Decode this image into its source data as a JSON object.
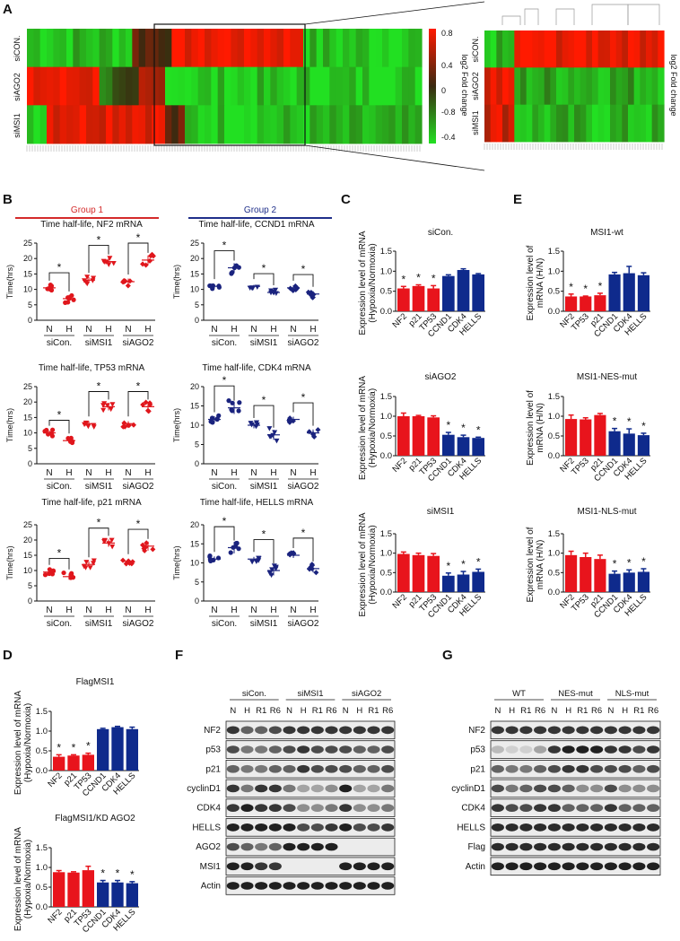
{
  "panel_labels": [
    "A",
    "B",
    "C",
    "D",
    "E",
    "F",
    "G"
  ],
  "chart_data": {
    "heatmap_A": {
      "type": "heatmap",
      "rows": [
        "siCON.",
        "siAGO2",
        "siMSI1"
      ],
      "legend_title": "log2 Fold change",
      "legend_ticks": [
        "0.8",
        "0.4",
        "0",
        "-0.8",
        "-0.4"
      ],
      "colors": {
        "high": "#ff1a00",
        "mid": "#3a2a10",
        "low": "#22e022"
      },
      "main_segments": [
        [
          [
            -0.7,
            16
          ],
          [
            0.2,
            6
          ],
          [
            0.85,
            20
          ],
          [
            -0.75,
            18
          ]
        ],
        [
          [
            0.8,
            11
          ],
          [
            -0.3,
            6
          ],
          [
            0.4,
            4
          ],
          [
            -0.8,
            39
          ]
        ],
        [
          [
            -0.7,
            3
          ],
          [
            0.85,
            18
          ],
          [
            0.1,
            3
          ],
          [
            -0.75,
            36
          ]
        ]
      ],
      "zoom_segments": [
        [
          [
            -0.75,
            5
          ],
          [
            0.85,
            25
          ]
        ],
        [
          [
            0.75,
            5
          ],
          [
            -0.6,
            25
          ]
        ],
        [
          [
            0.7,
            5
          ],
          [
            -0.7,
            25
          ]
        ]
      ]
    },
    "group_titles": [
      "Group 1",
      "Group 2"
    ],
    "group_colors": [
      "#d42a2a",
      "#1f2f8a"
    ],
    "scatter_B": [
      {
        "title": "Time half-life, NF2 mRNA",
        "ylabel": "Time(hrs)",
        "ymax": 25,
        "ticks": [
          0,
          5,
          10,
          15,
          20,
          25
        ],
        "color": "#e0161c",
        "marker": "circle/square/triangle",
        "means": [
          10.5,
          7,
          13,
          19,
          12.5,
          19.5
        ],
        "sd": [
          0.8,
          1.2,
          1.0,
          1.4,
          1.0,
          1.5
        ]
      },
      {
        "title": "Time half-life, CCND1 mRNA",
        "ylabel": "Time(hrs)",
        "ymax": 25,
        "ticks": [
          0,
          5,
          10,
          15,
          20,
          25
        ],
        "color": "#1a237e",
        "means": [
          11,
          17,
          11,
          9,
          10.5,
          8.5
        ],
        "sd": [
          0.6,
          1.5,
          0.5,
          0.8,
          0.8,
          0.9
        ]
      },
      {
        "title": "Time half-life, TP53 mRNA",
        "ylabel": "Time(hrs)",
        "ymax": 25,
        "ticks": [
          0,
          5,
          10,
          15,
          20,
          25
        ],
        "color": "#e0161c",
        "means": [
          10,
          7.5,
          13,
          18.5,
          13,
          18.5
        ],
        "sd": [
          0.8,
          0.8,
          0.8,
          1.2,
          0.8,
          1.2
        ]
      },
      {
        "title": "Time half-life, CDK4 mRNA",
        "ylabel": "Time(hrs)",
        "ymax": 20,
        "ticks": [
          0,
          5,
          10,
          15,
          20
        ],
        "color": "#1a237e",
        "means": [
          11.5,
          14.5,
          10,
          7.5,
          11.5,
          8
        ],
        "sd": [
          0.8,
          1.6,
          0.8,
          1.3,
          0.7,
          0.9
        ]
      },
      {
        "title": "Time half-life, p21 mRNA",
        "ylabel": "Time(hrs)",
        "ymax": 25,
        "ticks": [
          0,
          5,
          10,
          15,
          20,
          25
        ],
        "color": "#e0161c",
        "means": [
          9.5,
          8,
          12,
          19,
          13,
          18
        ],
        "sd": [
          0.8,
          1.0,
          1.0,
          1.2,
          0.8,
          1.5
        ]
      },
      {
        "title": "Time half-life, HELLS mRNA",
        "ylabel": "Time(hrs)",
        "ymax": 20,
        "ticks": [
          0,
          5,
          10,
          15,
          20
        ],
        "color": "#1a237e",
        "means": [
          11,
          14,
          11,
          8,
          12,
          8.5
        ],
        "sd": [
          0.7,
          1.5,
          0.6,
          1.3,
          0.7,
          1.0
        ]
      }
    ],
    "scatter_x_labels": [
      "N",
      "H",
      "N",
      "H",
      "N",
      "H"
    ],
    "scatter_groups": [
      "siCon.",
      "siMSI1",
      "siAGO2"
    ],
    "bar_colors": {
      "group1": "#e8141c",
      "group2": "#0f2a8c"
    },
    "bars_C": [
      {
        "title": "siCon.",
        "ylabel": [
          "Expression level of mRNA",
          "(Hypoxia/Normoxia)"
        ],
        "categories": [
          "NF2",
          "p21",
          "TP53",
          "CCND1",
          "CDK4",
          "HELLS"
        ],
        "values": [
          0.57,
          0.63,
          0.57,
          0.88,
          1.03,
          0.92
        ],
        "errors": [
          0.05,
          0.03,
          0.07,
          0.03,
          0.03,
          0.02
        ],
        "stars": [
          1,
          1,
          1,
          0,
          0,
          0
        ]
      },
      {
        "title": "siAGO2",
        "ylabel": [
          "Expression level of mRNA",
          "(Hypoxia/Normoxia)"
        ],
        "categories": [
          "NF2",
          "p21",
          "TP53",
          "CCND1",
          "CDK4",
          "HELLS"
        ],
        "values": [
          1.0,
          1.0,
          0.97,
          0.53,
          0.47,
          0.45
        ],
        "errors": [
          0.08,
          0.02,
          0.04,
          0.06,
          0.05,
          0.02
        ],
        "stars": [
          0,
          0,
          0,
          1,
          1,
          1
        ]
      },
      {
        "title": "siMSI1",
        "ylabel": [
          "Expression level of mRNA",
          "(Hypoxia/Normoxia)"
        ],
        "categories": [
          "NF2",
          "p21",
          "TP53",
          "CCND1",
          "CDK4",
          "HELLS"
        ],
        "values": [
          0.98,
          0.95,
          0.93,
          0.42,
          0.45,
          0.52
        ],
        "errors": [
          0.05,
          0.05,
          0.06,
          0.07,
          0.08,
          0.07
        ],
        "stars": [
          0,
          0,
          0,
          1,
          1,
          1
        ]
      }
    ],
    "bars_E": [
      {
        "title": "MSI1-wt",
        "ylabel": [
          "Expression level of",
          "mRNA (H/N)"
        ],
        "categories": [
          "NF2",
          "TP53",
          "p21",
          "CCND1",
          "CDK4",
          "HELLS"
        ],
        "values": [
          0.37,
          0.37,
          0.4,
          0.92,
          0.95,
          0.9
        ],
        "errors": [
          0.06,
          0.01,
          0.05,
          0.05,
          0.17,
          0.06
        ],
        "stars": [
          1,
          1,
          1,
          0,
          0,
          0
        ]
      },
      {
        "title": "MSI1-NES-mut",
        "ylabel": [
          "Expression level of",
          "mRNA (H/N)"
        ],
        "categories": [
          "NF2",
          "TP53",
          "p21",
          "CCND1",
          "CDK4",
          "HELLS"
        ],
        "values": [
          0.93,
          0.92,
          1.03,
          0.62,
          0.56,
          0.52
        ],
        "errors": [
          0.1,
          0.04,
          0.04,
          0.07,
          0.12,
          0.05
        ],
        "stars": [
          0,
          0,
          0,
          1,
          1,
          1
        ]
      },
      {
        "title": "MSI1-NLS-mut",
        "ylabel": [
          "Expression level of",
          "mRNA (H/N)"
        ],
        "categories": [
          "NF2",
          "TP53",
          "p21",
          "CCND1",
          "CDK4",
          "HELLS"
        ],
        "values": [
          0.95,
          0.9,
          0.85,
          0.47,
          0.5,
          0.52
        ],
        "errors": [
          0.1,
          0.1,
          0.1,
          0.07,
          0.07,
          0.08
        ],
        "stars": [
          0,
          0,
          0,
          1,
          1,
          1
        ]
      }
    ],
    "bars_D": [
      {
        "title": "FlagMSI1",
        "ylabel": [
          "Expression level of mRNA",
          "(Hypoxia/Normoxia)"
        ],
        "categories": [
          "NF2",
          "p21",
          "TP53",
          "CCND1",
          "CDK4",
          "HELLS"
        ],
        "values": [
          0.35,
          0.38,
          0.4,
          1.05,
          1.1,
          1.05
        ],
        "errors": [
          0.05,
          0.02,
          0.04,
          0.02,
          0.02,
          0.05
        ],
        "stars": [
          1,
          1,
          1,
          0,
          0,
          0
        ]
      },
      {
        "title": "FlagMSI1/KD AGO2",
        "ylabel": [
          "Expression level of mRNA",
          "(Hypoxia/Normoxia)"
        ],
        "categories": [
          "NF2",
          "p21",
          "TP53",
          "CCND1",
          "CDK4",
          "HELLS"
        ],
        "values": [
          0.88,
          0.87,
          0.93,
          0.62,
          0.62,
          0.6
        ],
        "errors": [
          0.04,
          0.02,
          0.1,
          0.05,
          0.05,
          0.04
        ],
        "stars": [
          0,
          0,
          0,
          1,
          1,
          1
        ]
      }
    ],
    "bar_ymax": 1.5,
    "bar_ticks": [
      "0.0",
      "0.5",
      "1.0",
      "1.5"
    ],
    "blot_F": {
      "groups": [
        "siCon.",
        "siMSI1",
        "siAGO2"
      ],
      "lanes": [
        "N",
        "H",
        "R1",
        "R6",
        "N",
        "H",
        "R1",
        "R6",
        "N",
        "H",
        "R1",
        "R6"
      ],
      "rows": [
        {
          "label": "NF2",
          "intensity": [
            0.8,
            0.6,
            0.6,
            0.7,
            0.8,
            0.8,
            0.8,
            0.8,
            0.8,
            0.8,
            0.8,
            0.8
          ]
        },
        {
          "label": "p53",
          "intensity": [
            0.7,
            0.5,
            0.5,
            0.6,
            0.7,
            0.8,
            0.7,
            0.7,
            0.7,
            0.6,
            0.6,
            0.7
          ]
        },
        {
          "label": "p21",
          "intensity": [
            0.6,
            0.5,
            0.5,
            0.6,
            0.6,
            0.8,
            0.7,
            0.7,
            0.7,
            0.6,
            0.6,
            0.7
          ]
        },
        {
          "label": "cyclinD1",
          "intensity": [
            0.8,
            0.5,
            0.8,
            0.8,
            0.5,
            0.3,
            0.3,
            0.4,
            0.9,
            0.3,
            0.3,
            0.5
          ]
        },
        {
          "label": "CDK4",
          "intensity": [
            0.8,
            0.9,
            0.8,
            0.8,
            0.7,
            0.4,
            0.4,
            0.5,
            0.8,
            0.4,
            0.4,
            0.5
          ]
        },
        {
          "label": "HELLS",
          "intensity": [
            0.9,
            0.9,
            0.9,
            0.9,
            0.9,
            0.7,
            0.7,
            0.8,
            0.9,
            0.7,
            0.7,
            0.8
          ]
        },
        {
          "label": "AGO2",
          "intensity": [
            0.7,
            0.6,
            0.5,
            0.6,
            0.9,
            0.9,
            0.9,
            0.9,
            0,
            0,
            0,
            0
          ]
        },
        {
          "label": "MSI1",
          "intensity": [
            0.9,
            0.9,
            0.8,
            0.8,
            0,
            0,
            0,
            0,
            0.9,
            0.9,
            0.9,
            0.9
          ]
        },
        {
          "label": "Actin",
          "intensity": [
            0.9,
            0.9,
            0.9,
            0.9,
            0.9,
            0.9,
            0.9,
            0.9,
            0.9,
            0.9,
            0.9,
            0.9
          ]
        }
      ]
    },
    "blot_G": {
      "groups": [
        "WT",
        "NES-mut",
        "NLS-mut"
      ],
      "lanes": [
        "N",
        "H",
        "R1",
        "R6",
        "N",
        "H",
        "R1",
        "R6",
        "N",
        "H",
        "R1",
        "R6"
      ],
      "rows": [
        {
          "label": "NF2",
          "intensity": [
            0.8,
            0.8,
            0.8,
            0.8,
            0.8,
            0.8,
            0.8,
            0.8,
            0.8,
            0.8,
            0.8,
            0.8
          ]
        },
        {
          "label": "p53",
          "intensity": [
            0.2,
            0.1,
            0.1,
            0.3,
            0.8,
            0.9,
            0.9,
            0.9,
            0.8,
            0.8,
            0.7,
            0.8
          ]
        },
        {
          "label": "p21",
          "intensity": [
            0.6,
            0.5,
            0.5,
            0.6,
            0.7,
            0.8,
            0.8,
            0.7,
            0.7,
            0.7,
            0.6,
            0.7
          ]
        },
        {
          "label": "cyclinD1",
          "intensity": [
            0.7,
            0.5,
            0.6,
            0.7,
            0.7,
            0.6,
            0.4,
            0.4,
            0.7,
            0.4,
            0.4,
            0.4
          ]
        },
        {
          "label": "CDK4",
          "intensity": [
            0.8,
            0.7,
            0.7,
            0.8,
            0.8,
            0.6,
            0.6,
            0.6,
            0.8,
            0.6,
            0.6,
            0.6
          ]
        },
        {
          "label": "HELLS",
          "intensity": [
            0.85,
            0.85,
            0.85,
            0.85,
            0.85,
            0.85,
            0.85,
            0.85,
            0.85,
            0.85,
            0.85,
            0.85
          ]
        },
        {
          "label": "Flag",
          "intensity": [
            0.85,
            0.85,
            0.85,
            0.85,
            0.85,
            0.85,
            0.85,
            0.85,
            0.85,
            0.85,
            0.85,
            0.85
          ]
        },
        {
          "label": "Actin",
          "intensity": [
            0.9,
            0.9,
            0.9,
            0.9,
            0.9,
            0.9,
            0.9,
            0.9,
            0.9,
            0.9,
            0.9,
            0.9
          ]
        }
      ]
    }
  }
}
